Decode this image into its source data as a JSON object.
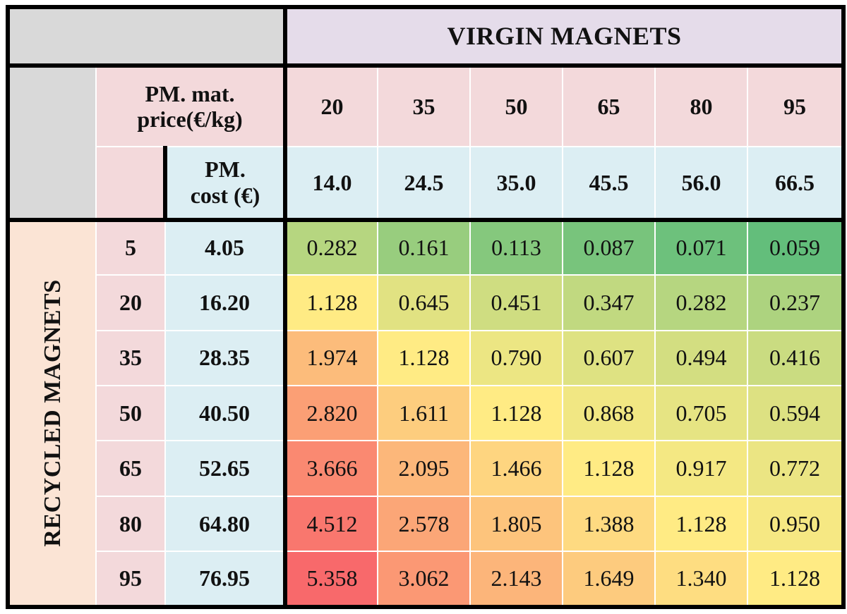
{
  "virgin_header": "VIRGIN MAGNETS",
  "recycled_header": "RECYCLED MAGNETS",
  "price_label_line1": "PM. mat.",
  "price_label_line2": "price(€/kg)",
  "cost_label_line1": "PM.",
  "cost_label_line2": "cost (€)",
  "virgin_prices": [
    "20",
    "35",
    "50",
    "65",
    "80",
    "95"
  ],
  "virgin_costs": [
    "14.0",
    "24.5",
    "35.0",
    "45.5",
    "56.0",
    "66.5"
  ],
  "recycled_prices": [
    "5",
    "20",
    "35",
    "50",
    "65",
    "80",
    "95"
  ],
  "recycled_costs": [
    "4.05",
    "16.20",
    "28.35",
    "40.50",
    "52.65",
    "64.80",
    "76.95"
  ],
  "matrix": [
    [
      "0.282",
      "0.161",
      "0.113",
      "0.087",
      "0.071",
      "0.059"
    ],
    [
      "1.128",
      "0.645",
      "0.451",
      "0.347",
      "0.282",
      "0.237"
    ],
    [
      "1.974",
      "1.128",
      "0.790",
      "0.607",
      "0.494",
      "0.416"
    ],
    [
      "2.820",
      "1.611",
      "1.128",
      "0.868",
      "0.705",
      "0.594"
    ],
    [
      "3.666",
      "2.095",
      "1.466",
      "1.128",
      "0.917",
      "0.772"
    ],
    [
      "4.512",
      "2.578",
      "1.805",
      "1.388",
      "1.128",
      "0.950"
    ],
    [
      "5.358",
      "3.062",
      "2.143",
      "1.649",
      "1.340",
      "1.128"
    ]
  ],
  "colors": {
    "header_grey": "#d9d9d9",
    "virgin_purple": "#e5dcea",
    "price_pink": "#f3d9db",
    "cost_blue": "#dceef3",
    "recycled_peach": "#fbe4d5",
    "scale_low": "#63be7b",
    "scale_mid": "#ffeb84",
    "scale_high": "#f8696b"
  }
}
